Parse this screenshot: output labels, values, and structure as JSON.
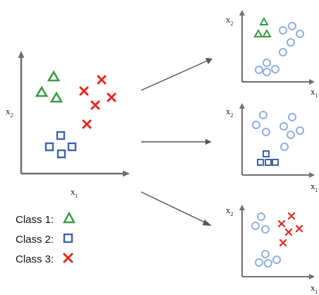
{
  "axis": {
    "x_label": "x",
    "x_sub": "1",
    "y_label": "x",
    "y_sub": "2"
  },
  "legend": [
    {
      "label": "Class 1:",
      "marker": "triangle",
      "color": "#3a9a44"
    },
    {
      "label": "Class 2:",
      "marker": "square",
      "color": "#3d63a8"
    },
    {
      "label": "Class 3:",
      "marker": "x",
      "color": "#e0281e"
    }
  ],
  "colors": {
    "class1": "#3a9a44",
    "class2": "#3d63a8",
    "class3": "#e0281e",
    "rest": "#8fb0de",
    "axis": "#6f6f6f",
    "arrow": "#555555"
  },
  "panels": [
    {
      "name": "original-plot",
      "featured_class": "all"
    },
    {
      "name": "one-vs-rest-class1-plot",
      "featured_class": "class1"
    },
    {
      "name": "one-vs-rest-class2-plot",
      "featured_class": "class2"
    },
    {
      "name": "one-vs-rest-class3-plot",
      "featured_class": "class3"
    }
  ]
}
